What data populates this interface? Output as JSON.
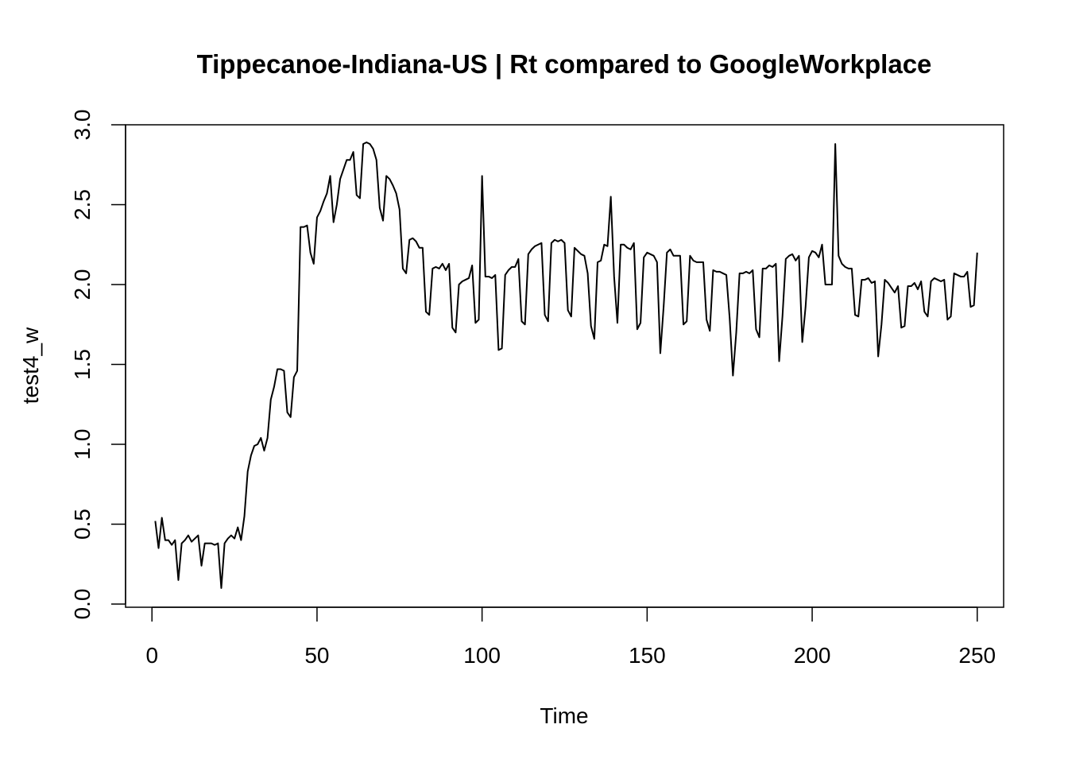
{
  "chart_data": {
    "type": "line",
    "title": "Tippecanoe-Indiana-US | Rt compared to GoogleWorkplace",
    "xlabel": "Time",
    "ylabel": "test4_w",
    "xlim": [
      -8,
      258
    ],
    "ylim": [
      -0.02,
      3.0
    ],
    "x_ticks": [
      0,
      50,
      100,
      150,
      200,
      250
    ],
    "y_ticks": [
      0.0,
      0.5,
      1.0,
      1.5,
      2.0,
      2.5,
      3.0
    ],
    "x_tick_labels": [
      "0",
      "50",
      "100",
      "150",
      "200",
      "250"
    ],
    "y_tick_labels": [
      "0.0",
      "0.5",
      "1.0",
      "1.5",
      "2.0",
      "2.5",
      "3.0"
    ],
    "grid": false,
    "legend": "none",
    "line_color": "#000000",
    "series": [
      {
        "x_start": 1,
        "x_step": 1,
        "values": [
          0.52,
          0.35,
          0.54,
          0.4,
          0.4,
          0.37,
          0.4,
          0.15,
          0.38,
          0.4,
          0.43,
          0.39,
          0.41,
          0.43,
          0.24,
          0.38,
          0.38,
          0.38,
          0.37,
          0.38,
          0.1,
          0.38,
          0.41,
          0.43,
          0.41,
          0.48,
          0.4,
          0.55,
          0.83,
          0.93,
          0.99,
          1.0,
          1.04,
          0.96,
          1.04,
          1.28,
          1.36,
          1.47,
          1.47,
          1.46,
          1.2,
          1.17,
          1.42,
          1.46,
          2.36,
          2.36,
          2.37,
          2.2,
          2.13,
          2.42,
          2.46,
          2.52,
          2.57,
          2.68,
          2.39,
          2.5,
          2.66,
          2.72,
          2.78,
          2.78,
          2.83,
          2.56,
          2.54,
          2.88,
          2.89,
          2.88,
          2.85,
          2.78,
          2.48,
          2.4,
          2.68,
          2.66,
          2.62,
          2.57,
          2.47,
          2.1,
          2.07,
          2.28,
          2.29,
          2.27,
          2.23,
          2.23,
          1.83,
          1.81,
          2.1,
          2.11,
          2.1,
          2.13,
          2.09,
          2.13,
          1.73,
          1.7,
          2.0,
          2.02,
          2.03,
          2.04,
          2.12,
          1.76,
          1.78,
          2.68,
          2.05,
          2.05,
          2.04,
          2.06,
          1.59,
          1.6,
          2.06,
          2.09,
          2.11,
          2.11,
          2.16,
          1.77,
          1.75,
          2.19,
          2.22,
          2.24,
          2.25,
          2.26,
          1.81,
          1.77,
          2.26,
          2.28,
          2.27,
          2.28,
          2.26,
          1.84,
          1.8,
          2.23,
          2.21,
          2.19,
          2.18,
          2.07,
          1.74,
          1.66,
          2.14,
          2.15,
          2.25,
          2.24,
          2.55,
          2.05,
          1.76,
          2.25,
          2.25,
          2.23,
          2.22,
          2.26,
          1.72,
          1.76,
          2.17,
          2.2,
          2.19,
          2.18,
          2.14,
          1.57,
          1.86,
          2.2,
          2.22,
          2.18,
          2.18,
          2.18,
          1.75,
          1.77,
          2.18,
          2.15,
          2.14,
          2.14,
          2.14,
          1.78,
          1.71,
          2.09,
          2.08,
          2.08,
          2.07,
          2.06,
          1.79,
          1.43,
          1.7,
          2.07,
          2.07,
          2.08,
          2.07,
          2.09,
          1.72,
          1.67,
          2.1,
          2.1,
          2.12,
          2.11,
          2.13,
          1.52,
          1.8,
          2.16,
          2.18,
          2.19,
          2.15,
          2.18,
          1.64,
          1.86,
          2.17,
          2.21,
          2.2,
          2.17,
          2.25,
          2.0,
          2.0,
          2.0,
          2.88,
          2.18,
          2.13,
          2.11,
          2.1,
          2.1,
          1.81,
          1.8,
          2.03,
          2.03,
          2.04,
          2.01,
          2.02,
          1.55,
          1.75,
          2.03,
          2.01,
          1.98,
          1.95,
          1.99,
          1.73,
          1.74,
          1.99,
          1.99,
          2.01,
          1.97,
          2.02,
          1.83,
          1.8,
          2.02,
          2.04,
          2.03,
          2.02,
          2.03,
          1.78,
          1.8,
          2.07,
          2.06,
          2.05,
          2.05,
          2.08,
          1.86,
          1.87,
          2.2
        ]
      }
    ]
  }
}
